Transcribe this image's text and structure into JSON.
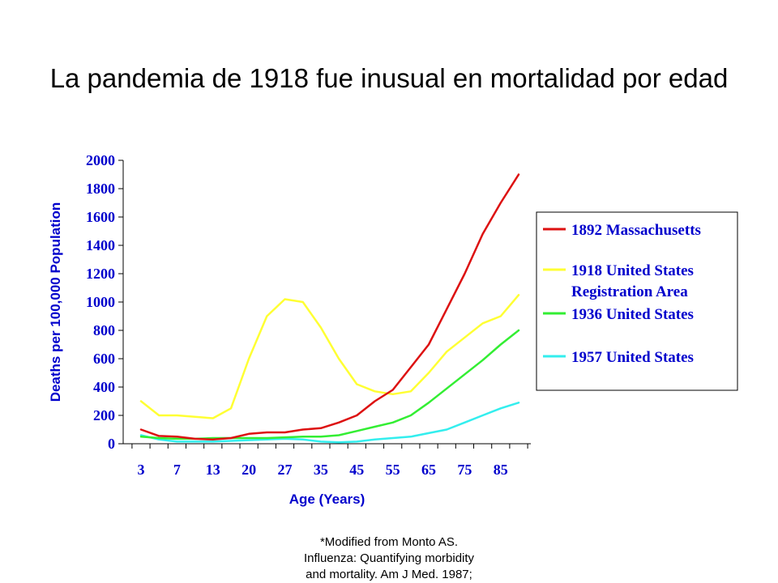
{
  "slide": {
    "title": "La pandemia de 1918 fue inusual en mortalidad por edad",
    "footnote_lines": [
      "*Modified from Monto AS.",
      "Influenza: Quantifying morbidity",
      "and mortality. Am J Med. 1987;"
    ]
  },
  "chart_data": {
    "type": "line",
    "xlabel": "Age (Years)",
    "ylabel": "Deaths per 100,000 Population",
    "ylim": [
      0,
      2000
    ],
    "y_ticks": [
      0,
      200,
      400,
      600,
      800,
      1000,
      1200,
      1400,
      1600,
      1800,
      2000
    ],
    "x_tick_labels": [
      "3",
      "7",
      "13",
      "20",
      "27",
      "35",
      "45",
      "55",
      "65",
      "75",
      "85"
    ],
    "x_points": 22,
    "x_tick_every": 2,
    "grid": false,
    "legend_position": "right",
    "series": [
      {
        "name": "1892 Massachusetts",
        "legend_lines": [
          "1892 Massachusetts"
        ],
        "color": "#dd1111",
        "values": [
          100,
          55,
          50,
          35,
          30,
          40,
          70,
          80,
          80,
          100,
          110,
          150,
          200,
          300,
          380,
          540,
          700,
          950,
          1200,
          1480,
          1700,
          1900
        ]
      },
      {
        "name": "1918 United States Registration Area",
        "legend_lines": [
          "1918 United States",
          "Registration Area"
        ],
        "color": "#ffff33",
        "values": [
          300,
          200,
          200,
          190,
          180,
          250,
          600,
          900,
          1020,
          1000,
          820,
          600,
          420,
          370,
          350,
          370,
          500,
          650,
          750,
          850,
          900,
          1050
        ]
      },
      {
        "name": "1936 United States",
        "legend_lines": [
          "1936 United States"
        ],
        "color": "#33ee33",
        "values": [
          50,
          40,
          35,
          35,
          40,
          40,
          40,
          40,
          45,
          50,
          50,
          60,
          90,
          120,
          150,
          200,
          290,
          390,
          490,
          590,
          700,
          800
        ]
      },
      {
        "name": "1957 United States",
        "legend_lines": [
          "1957 United States"
        ],
        "color": "#33eeee",
        "values": [
          60,
          30,
          15,
          15,
          15,
          20,
          25,
          30,
          35,
          30,
          15,
          10,
          15,
          30,
          40,
          50,
          75,
          100,
          150,
          200,
          250,
          290
        ]
      }
    ]
  }
}
